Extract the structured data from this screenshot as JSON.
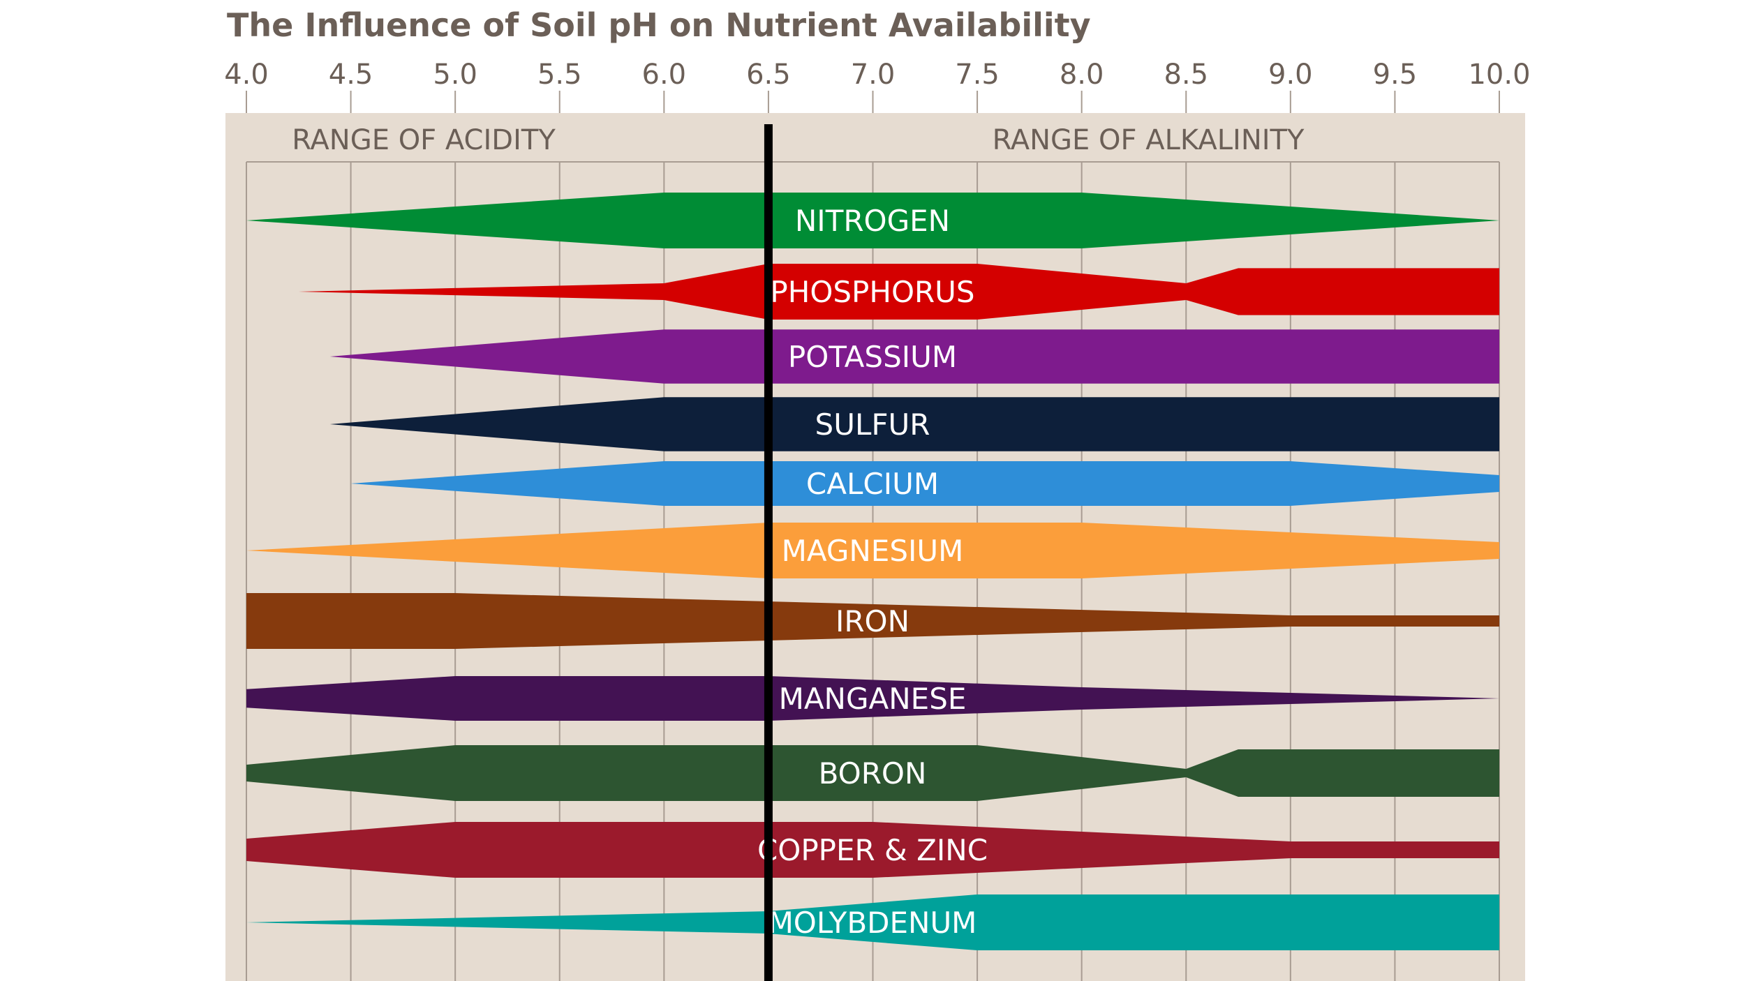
{
  "chart_data": {
    "type": "area",
    "title": "The Influence of Soil pH on Nutrient Availability",
    "x_axis": {
      "min": 4.0,
      "max": 10.0,
      "ticks": [
        "4.0",
        "4.5",
        "5.0",
        "5.5",
        "6.0",
        "6.5",
        "7.0",
        "7.5",
        "8.0",
        "8.5",
        "9.0",
        "9.5",
        "10.0"
      ]
    },
    "range_labels": {
      "acidity": "RANGE OF ACIDITY",
      "alkalinity": "RANGE OF ALKALINITY"
    },
    "reference_line_ph": 6.5,
    "value_scale": "relative availability, 0 = none, 1 = maximum",
    "series": [
      {
        "name": "NITROGEN",
        "color": "#008c35",
        "points": [
          [
            4.0,
            0.0
          ],
          [
            6.0,
            1.0
          ],
          [
            8.0,
            1.0
          ],
          [
            10.0,
            0.0
          ]
        ]
      },
      {
        "name": "PHOSPHORUS",
        "color": "#d40000",
        "points": [
          [
            4.25,
            0.0
          ],
          [
            6.0,
            0.3
          ],
          [
            6.5,
            1.0
          ],
          [
            7.5,
            1.0
          ],
          [
            8.5,
            0.3
          ],
          [
            8.75,
            0.84
          ],
          [
            10.0,
            0.84
          ]
        ]
      },
      {
        "name": "POTASSIUM",
        "color": "#7e1b8d",
        "points": [
          [
            4.4,
            0.0
          ],
          [
            6.0,
            0.97
          ],
          [
            10.0,
            0.97
          ]
        ]
      },
      {
        "name": "SULFUR",
        "color": "#0d1f3a",
        "points": [
          [
            4.4,
            0.0
          ],
          [
            6.0,
            0.97
          ],
          [
            10.0,
            0.97
          ]
        ]
      },
      {
        "name": "CALCIUM",
        "color": "#2e8ed8",
        "points": [
          [
            4.5,
            0.0
          ],
          [
            6.0,
            0.8
          ],
          [
            9.0,
            0.8
          ],
          [
            10.0,
            0.3
          ]
        ]
      },
      {
        "name": "MAGNESIUM",
        "color": "#fb9e3b",
        "points": [
          [
            4.0,
            0.0
          ],
          [
            6.5,
            1.0
          ],
          [
            8.0,
            1.0
          ],
          [
            10.0,
            0.3
          ]
        ]
      },
      {
        "name": "IRON",
        "color": "#863a0d",
        "points": [
          [
            4.0,
            1.0
          ],
          [
            5.0,
            1.0
          ],
          [
            9.0,
            0.2
          ],
          [
            10.0,
            0.2
          ]
        ]
      },
      {
        "name": "MANGANESE",
        "color": "#431253",
        "points": [
          [
            4.0,
            0.33
          ],
          [
            5.0,
            0.8
          ],
          [
            6.5,
            0.8
          ],
          [
            8.0,
            0.4
          ],
          [
            10.0,
            0.0
          ]
        ]
      },
      {
        "name": "BORON",
        "color": "#2d5531",
        "points": [
          [
            4.0,
            0.3
          ],
          [
            5.0,
            1.0
          ],
          [
            7.5,
            1.0
          ],
          [
            8.5,
            0.15
          ],
          [
            8.75,
            0.85
          ],
          [
            10.0,
            0.85
          ]
        ]
      },
      {
        "name": "COPPER & ZINC",
        "color": "#9b1a2c",
        "points": [
          [
            4.0,
            0.4
          ],
          [
            5.0,
            1.0
          ],
          [
            7.0,
            1.0
          ],
          [
            9.0,
            0.3
          ],
          [
            10.0,
            0.3
          ]
        ]
      },
      {
        "name": "MOLYBDENUM",
        "color": "#00a19a",
        "points": [
          [
            4.0,
            0.0
          ],
          [
            6.5,
            0.4
          ],
          [
            7.5,
            1.0
          ],
          [
            10.0,
            1.0
          ]
        ]
      }
    ]
  }
}
